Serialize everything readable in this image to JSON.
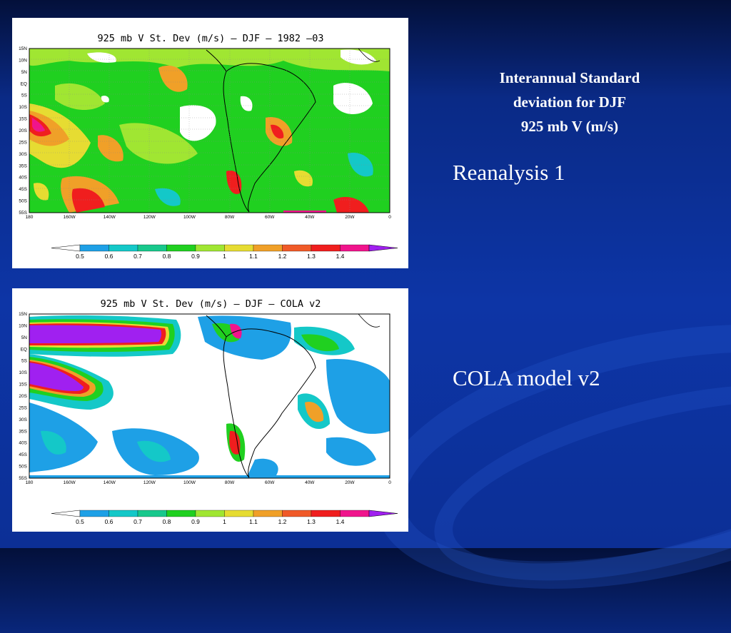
{
  "slide": {
    "title_lines": [
      "Interannual Standard",
      "deviation for DJF",
      "925 mb V (m/s)"
    ],
    "label1": "Reanalysis 1",
    "label2": "COLA model v2"
  },
  "maps": [
    {
      "title": "925 mb V St. Dev (m/s) – DJF – 1982 –03"
    },
    {
      "title": "925 mb V St. Dev (m/s) – DJF – COLA v2"
    }
  ],
  "lat_labels": [
    "15N",
    "10N",
    "5N",
    "EQ",
    "5S",
    "10S",
    "15S",
    "20S",
    "25S",
    "30S",
    "35S",
    "40S",
    "45S",
    "50S",
    "55S"
  ],
  "lon_labels": [
    "180",
    "160W",
    "140W",
    "120W",
    "100W",
    "80W",
    "60W",
    "40W",
    "20W",
    "0"
  ],
  "colorbar": {
    "labels": [
      "0.5",
      "0.6",
      "0.7",
      "0.8",
      "0.9",
      "1",
      "1.1",
      "1.2",
      "1.3",
      "1.4"
    ],
    "colors": [
      "#ffffff",
      "#1ea0e6",
      "#14c8c8",
      "#18c88c",
      "#20d020",
      "#a0e632",
      "#e6dc32",
      "#f0a028",
      "#f05a28",
      "#f01e1e",
      "#f0148c",
      "#a020f0"
    ]
  }
}
